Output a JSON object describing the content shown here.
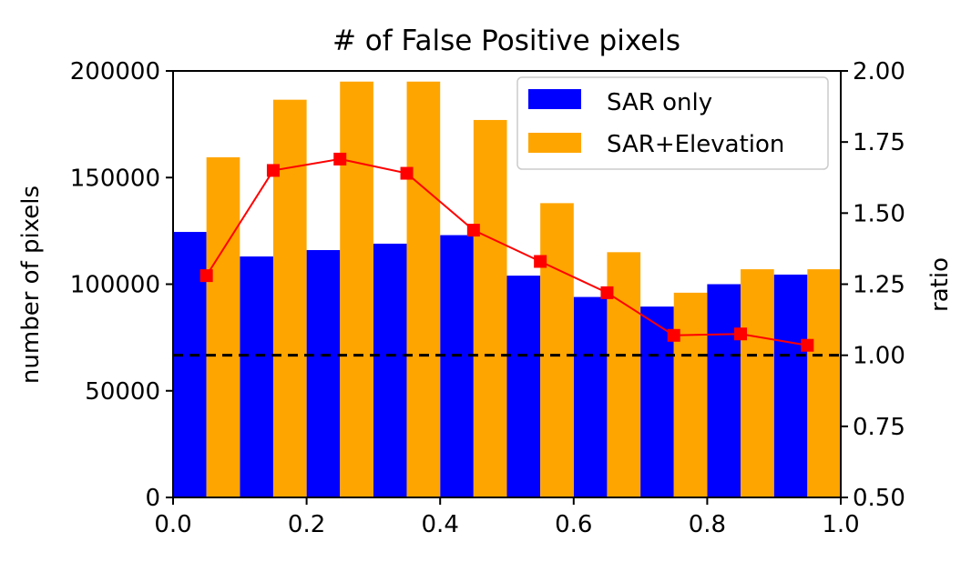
{
  "chart_data": {
    "type": "bar",
    "title": "# of False Positive pixels",
    "xlabel": "",
    "ylabel": "number of pixels",
    "y2label": "ratio",
    "xlim": [
      0.0,
      1.0
    ],
    "ylim": [
      0,
      200000
    ],
    "y2lim": [
      0.5,
      2.0
    ],
    "bin_edges": [
      0.0,
      0.1,
      0.2,
      0.3,
      0.4,
      0.5,
      0.6,
      0.7,
      0.8,
      0.9,
      1.0
    ],
    "x_ticks": [
      "0.0",
      "0.2",
      "0.4",
      "0.6",
      "0.8",
      "1.0"
    ],
    "y_ticks": [
      "0",
      "50000",
      "100000",
      "150000",
      "200000"
    ],
    "y2_ticks": [
      "0.50",
      "0.75",
      "1.00",
      "1.25",
      "1.50",
      "1.75",
      "2.00"
    ],
    "series": [
      {
        "name": "SAR only",
        "color": "#0000ff",
        "values": [
          124500,
          113000,
          116000,
          119000,
          123000,
          104000,
          94000,
          89500,
          100000,
          104500
        ]
      },
      {
        "name": "SAR+Elevation",
        "color": "#ffa500",
        "values": [
          159500,
          186500,
          195000,
          195000,
          177000,
          138000,
          115000,
          96000,
          107000,
          107000
        ]
      }
    ],
    "ratio_line": {
      "color": "#ff0000",
      "x": [
        0.05,
        0.15,
        0.25,
        0.35,
        0.45,
        0.55,
        0.65,
        0.75,
        0.85,
        0.95
      ],
      "values": [
        1.28,
        1.65,
        1.69,
        1.64,
        1.44,
        1.33,
        1.22,
        1.07,
        1.075,
        1.035
      ]
    },
    "reference_line": {
      "y2": 1.0,
      "style": "dashed",
      "color": "#000000"
    },
    "legend_position": "top-right",
    "grid": false
  }
}
